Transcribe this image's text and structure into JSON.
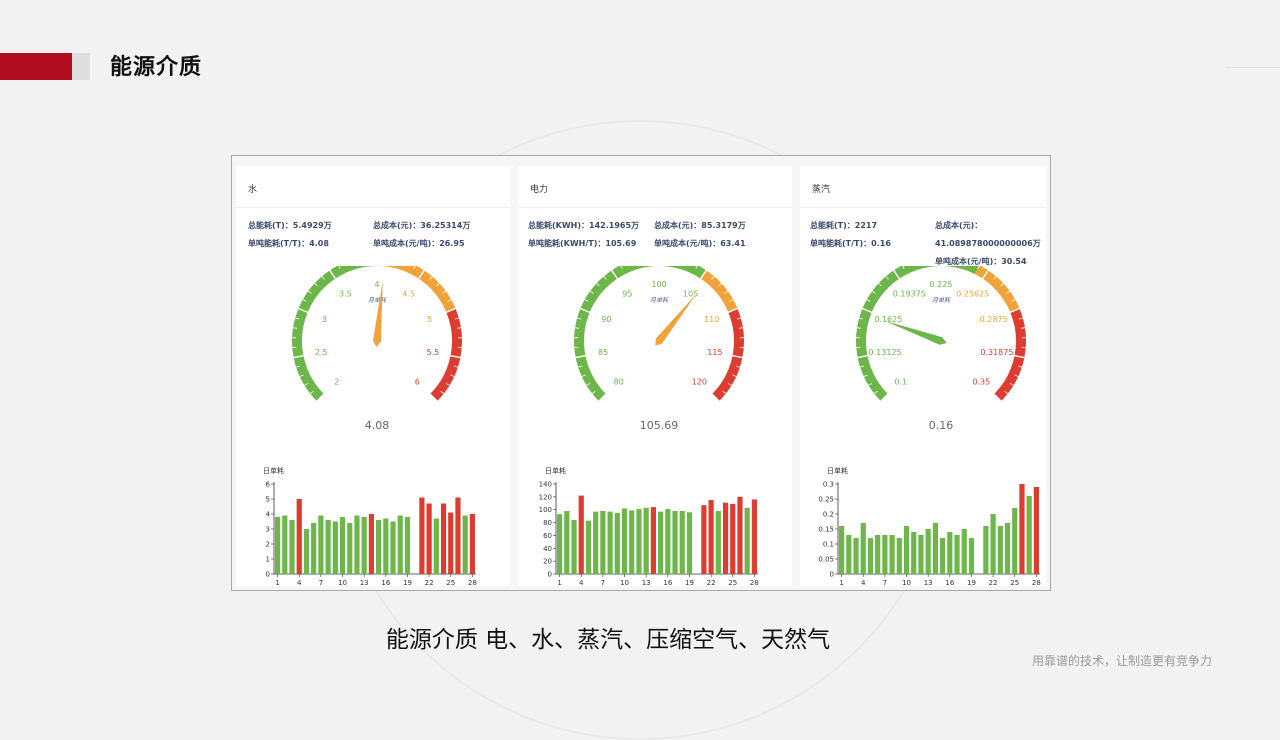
{
  "header": {
    "title": "能源介质"
  },
  "caption": "能源介质 电、水、蒸汽、压缩空气、天然气",
  "slogan": "用靠谱的技术，让制造更有竞争力",
  "colors": {
    "green": "#6db64a",
    "orange": "#f0a33a",
    "red": "#dc3d30",
    "brand_red": "#b00d23"
  },
  "panels": [
    {
      "title": "水",
      "stats": {
        "total_consumption": "总能耗(T)：5.4929万",
        "total_cost": "总成本(元)：36.25314万",
        "unit_consumption": "单吨能耗(T/T)：4.08",
        "unit_cost": "单吨成本(元/吨)：26.95"
      },
      "gauge": {
        "inner_label": "月单耗",
        "value": 4.08,
        "value_text": "4.08",
        "min": 2,
        "max": 6,
        "ticks": [
          "2",
          "2.5",
          "3",
          "3.5",
          "4",
          "4.5",
          "5",
          "5.5",
          "6"
        ],
        "bands": [
          [
            0.5,
            "green"
          ],
          [
            0.75,
            "orange"
          ],
          [
            1,
            "red"
          ]
        ],
        "pointer_color": "orange"
      },
      "bar_chart": {
        "label": "日单耗",
        "ylim": [
          0,
          6
        ],
        "yticks": [
          "0",
          "1",
          "2",
          "3",
          "4",
          "5",
          "6"
        ],
        "xticks": [
          1,
          4,
          7,
          10,
          13,
          16,
          19,
          22,
          25,
          28
        ],
        "values": [
          3.8,
          3.9,
          3.6,
          5.0,
          3.0,
          3.4,
          3.9,
          3.6,
          3.5,
          3.8,
          3.4,
          3.9,
          3.8,
          4.0,
          3.6,
          3.7,
          3.5,
          3.9,
          3.8,
          null,
          5.1,
          4.7,
          3.7,
          4.7,
          4.1,
          5.1,
          3.9,
          4.0
        ],
        "highlight": [
          4,
          14,
          21,
          22,
          24,
          25,
          26,
          28
        ]
      }
    },
    {
      "title": "电力",
      "stats": {
        "total_consumption": "总能耗(KWH)：142.1965万",
        "total_cost": "总成本(元)：85.3179万",
        "unit_consumption": "单吨能耗(KWH/T)：105.69",
        "unit_cost": "单吨成本(元/吨)：63.41"
      },
      "gauge": {
        "inner_label": "月单耗",
        "value": 105.69,
        "value_text": "105.69",
        "min": 80,
        "max": 120,
        "ticks": [
          "80",
          "85",
          "90",
          "95",
          "100",
          "105",
          "110",
          "115",
          "120"
        ],
        "bands": [
          [
            0.625,
            "green"
          ],
          [
            0.75,
            "orange"
          ],
          [
            1,
            "red"
          ]
        ],
        "pointer_color": "orange"
      },
      "bar_chart": {
        "label": "日单耗",
        "ylim": [
          0,
          140
        ],
        "yticks": [
          "0",
          "20",
          "40",
          "60",
          "80",
          "100",
          "120",
          "140"
        ],
        "xticks": [
          1,
          4,
          7,
          10,
          13,
          16,
          19,
          22,
          25,
          28
        ],
        "values": [
          93,
          98,
          84,
          122,
          83,
          97,
          98,
          97,
          95,
          102,
          99,
          101,
          103,
          104,
          97,
          101,
          98,
          98,
          96,
          null,
          107,
          115,
          98,
          111,
          109,
          120,
          103,
          116
        ],
        "highlight": [
          4,
          14,
          21,
          22,
          24,
          25,
          26,
          28
        ]
      }
    },
    {
      "title": "蒸汽",
      "stats": {
        "total_consumption": "总能耗(T)：2217",
        "total_cost": "总成本(元)：",
        "total_cost_value": "41.089878000000006万",
        "unit_consumption": "单吨能耗(T/T)：0.16",
        "unit_cost": "单吨成本(元/吨)：30.54"
      },
      "gauge": {
        "inner_label": "月单耗",
        "value": 0.16,
        "value_text": "0.16",
        "min": 0.1,
        "max": 0.35,
        "ticks": [
          "0.1",
          "0.13125",
          "0.1625",
          "0.19375",
          "0.225",
          "0.25625",
          "0.2875",
          "0.31875",
          "0.35"
        ],
        "bands": [
          [
            0.6,
            "green"
          ],
          [
            0.75,
            "orange"
          ],
          [
            1,
            "red"
          ]
        ],
        "pointer_color": "green"
      },
      "bar_chart": {
        "label": "日单耗",
        "ylim": [
          0,
          0.3
        ],
        "yticks": [
          "0",
          "0.05",
          "0.1",
          "0.15",
          "0.2",
          "0.25",
          "0.3"
        ],
        "xticks": [
          1,
          4,
          7,
          10,
          13,
          16,
          19,
          22,
          25,
          28
        ],
        "values": [
          0.16,
          0.13,
          0.12,
          0.17,
          0.12,
          0.13,
          0.13,
          0.13,
          0.12,
          0.16,
          0.14,
          0.13,
          0.15,
          0.17,
          0.12,
          0.14,
          0.13,
          0.15,
          0.12,
          null,
          0.16,
          0.2,
          0.16,
          0.17,
          0.22,
          0.3,
          0.26,
          0.29
        ],
        "highlight": [
          26,
          28
        ]
      }
    }
  ]
}
